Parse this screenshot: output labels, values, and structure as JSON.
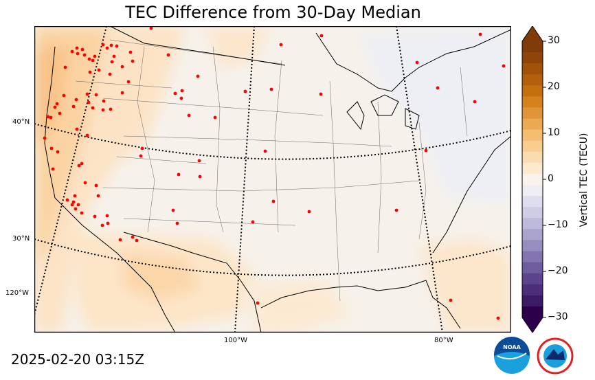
{
  "title": "TEC Difference from 30-Day Median",
  "timestamp": "2025-02-20 03:15Z",
  "colorbar": {
    "label": "Vertical TEC (TECU)",
    "min": -30,
    "max": 30,
    "ticks": [
      "30",
      "20",
      "10",
      "0",
      "−10",
      "−20",
      "−30"
    ],
    "colors_top_to_bottom": [
      "#7f3b08",
      "#8f4509",
      "#a2530a",
      "#b35f0b",
      "#c4700f",
      "#d5821d",
      "#e0953a",
      "#eca954",
      "#f5bd70",
      "#f9cd90",
      "#fbdcb0",
      "#fde9cf",
      "#f8f3ec",
      "#eeeef4",
      "#dfdeee",
      "#cfcde5",
      "#bdb9da",
      "#aaa3cd",
      "#978dbf",
      "#8275b0",
      "#6e5c9f",
      "#5b448d",
      "#4a2e7a",
      "#3b1b66",
      "#2d004b"
    ]
  },
  "graticule": {
    "lat_labels": [
      "40°N",
      "30°N",
      "120°W"
    ],
    "lon_labels": [
      "100°W",
      "80°W"
    ]
  },
  "logos": {
    "noaa": "NOAA",
    "nws": "NATIONAL WEATHER SERVICE"
  },
  "colors": {
    "land_base": "#f6f1ea",
    "positive_light": "#fce6cc",
    "positive_mid": "#fbd6a8",
    "negative_light": "#eeeff4",
    "station": "#ff0000"
  },
  "stations_count_note": ""
}
